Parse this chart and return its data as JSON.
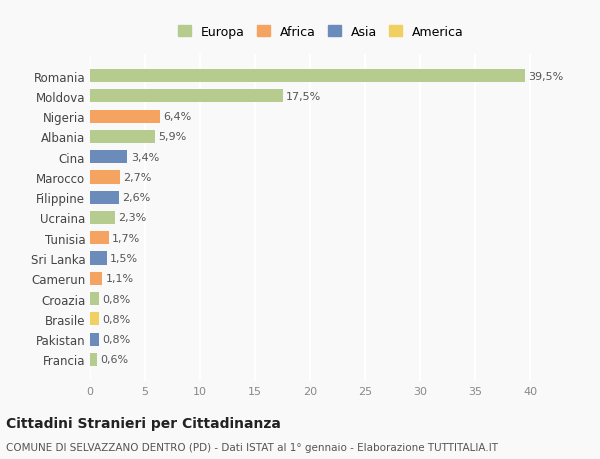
{
  "countries": [
    "Romania",
    "Moldova",
    "Nigeria",
    "Albania",
    "Cina",
    "Marocco",
    "Filippine",
    "Ucraina",
    "Tunisia",
    "Sri Lanka",
    "Camerun",
    "Croazia",
    "Brasile",
    "Pakistan",
    "Francia"
  ],
  "values": [
    39.5,
    17.5,
    6.4,
    5.9,
    3.4,
    2.7,
    2.6,
    2.3,
    1.7,
    1.5,
    1.1,
    0.8,
    0.8,
    0.8,
    0.6
  ],
  "labels": [
    "39,5%",
    "17,5%",
    "6,4%",
    "5,9%",
    "3,4%",
    "2,7%",
    "2,6%",
    "2,3%",
    "1,7%",
    "1,5%",
    "1,1%",
    "0,8%",
    "0,8%",
    "0,8%",
    "0,6%"
  ],
  "continent": [
    "Europa",
    "Europa",
    "Africa",
    "Europa",
    "Asia",
    "Africa",
    "Asia",
    "Europa",
    "Africa",
    "Asia",
    "Africa",
    "Europa",
    "America",
    "Asia",
    "Europa"
  ],
  "colors": {
    "Europa": "#b5cc8e",
    "Africa": "#f4a460",
    "Asia": "#6b8cba",
    "America": "#f0d060"
  },
  "legend_order": [
    "Europa",
    "Africa",
    "Asia",
    "America"
  ],
  "title": "Cittadini Stranieri per Cittadinanza",
  "subtitle": "COMUNE DI SELVAZZANO DENTRO (PD) - Dati ISTAT al 1° gennaio - Elaborazione TUTTITALIA.IT",
  "xlim": [
    0,
    42
  ],
  "xticks": [
    0,
    5,
    10,
    15,
    20,
    25,
    30,
    35,
    40
  ],
  "background_color": "#f9f9f9",
  "grid_color": "#ffffff",
  "bar_height": 0.65
}
